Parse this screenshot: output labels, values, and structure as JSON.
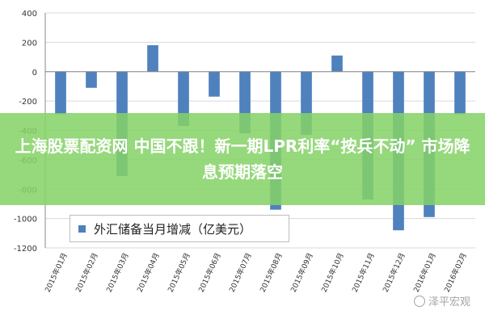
{
  "banner": {
    "text": "上海股票配资网 中国不跟！新一期LPR利率“按兵不动” 市场降息预期落空"
  },
  "watermark": {
    "text": "泽平宏观"
  },
  "colors": {
    "bar": "#4F81BD",
    "grid": "#d9d9d9",
    "axis": "#888888",
    "banner": "#85d266"
  },
  "chart_data": {
    "type": "bar",
    "categories": [
      "2015年01月",
      "2015年02月",
      "2015年03月",
      "2015年04月",
      "2015年05月",
      "2015年06月",
      "2015年07月",
      "2015年08月",
      "2015年09月",
      "2015年10月",
      "2015年11月",
      "2015年12月",
      "2016年01月",
      "2016年02月"
    ],
    "series": [
      {
        "name": "外汇储备当月增减（亿美元）",
        "values": [
          -290,
          -110,
          -710,
          180,
          -370,
          -170,
          -420,
          -940,
          -430,
          110,
          -870,
          -1080,
          -990,
          -290
        ]
      }
    ],
    "ylim": [
      -1200,
      400
    ],
    "yticks": [
      400,
      200,
      0,
      -200,
      -400,
      -600,
      -800,
      -1000,
      -1200
    ],
    "grid": true,
    "legend": "bottom-left"
  }
}
